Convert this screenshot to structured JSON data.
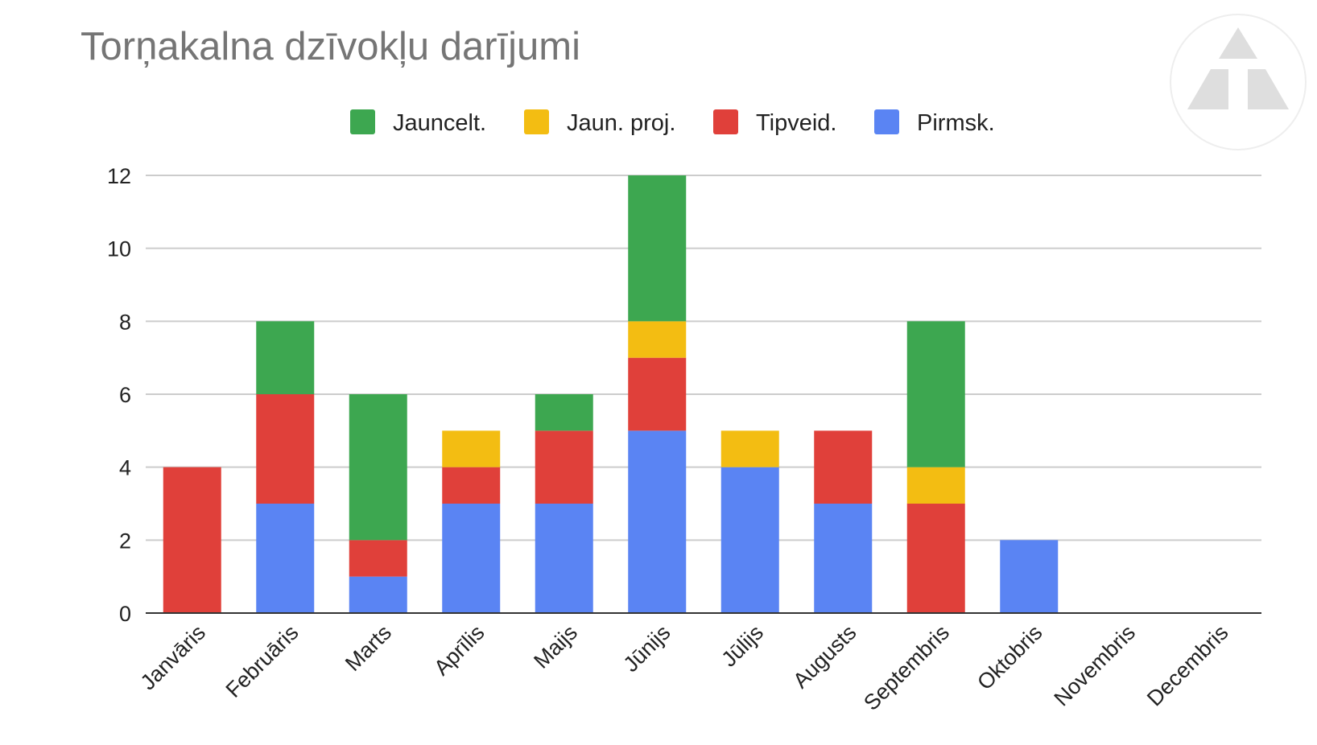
{
  "chart_data": {
    "type": "bar",
    "stacked": true,
    "title": "Torņakalna dzīvokļu darījumi",
    "xlabel": "",
    "ylabel": "",
    "categories": [
      "Janvāris",
      "Februāris",
      "Marts",
      "Aprīlis",
      "Maijs",
      "Jūnijs",
      "Jūlijs",
      "Augusts",
      "Septembris",
      "Oktobris",
      "Novembris",
      "Decembris"
    ],
    "series": [
      {
        "name": "Pirmsk.",
        "color": "#5a84f3",
        "values": [
          0,
          3,
          1,
          3,
          3,
          5,
          4,
          3,
          0,
          2,
          0,
          0
        ]
      },
      {
        "name": "Tipveid.",
        "color": "#e0403a",
        "values": [
          4,
          3,
          1,
          1,
          2,
          2,
          0,
          2,
          3,
          0,
          0,
          0
        ]
      },
      {
        "name": "Jaun. proj.",
        "color": "#f3bd12",
        "values": [
          0,
          0,
          0,
          1,
          0,
          1,
          1,
          0,
          1,
          0,
          0,
          0
        ]
      },
      {
        "name": "Jauncelt.",
        "color": "#3da750",
        "values": [
          0,
          2,
          4,
          0,
          1,
          4,
          0,
          0,
          4,
          0,
          0,
          0
        ]
      }
    ],
    "legend_order": [
      "Jauncelt.",
      "Jaun. proj.",
      "Tipveid.",
      "Pirmsk."
    ],
    "legend_position": "top",
    "ylim": [
      0,
      12
    ],
    "yticks": [
      "0",
      "2",
      "4",
      "6",
      "8",
      "10",
      "12"
    ],
    "grid": true,
    "logo": "triangle-logo-icon"
  }
}
